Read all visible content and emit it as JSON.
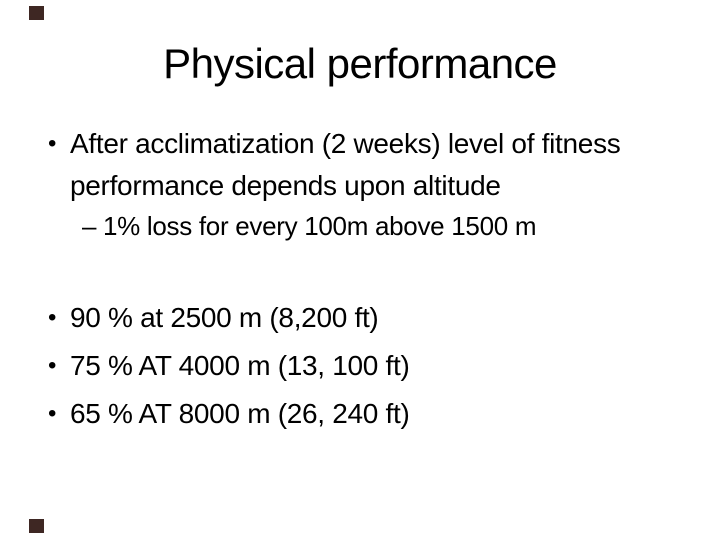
{
  "slide": {
    "title": "Physical performance",
    "bullets": [
      {
        "level": 1,
        "marker": "•",
        "text": "After acclimatization (2 weeks) level of fitness\nperformance depends upon altitude"
      },
      {
        "level": 2,
        "marker": "–",
        "text": "1% loss for every 100m above 1500 m"
      },
      {
        "level": 1,
        "marker": "•",
        "text": "90 % at 2500 m (8,200 ft)"
      },
      {
        "level": 1,
        "marker": "•",
        "text": "75 % AT 4000 m (13, 100 ft)"
      },
      {
        "level": 1,
        "marker": "•",
        "text": "65 % AT 8000 m (26, 240 ft)"
      }
    ],
    "colors": {
      "background": "#ffffff",
      "text": "#000000",
      "corner_marker": "#3e2723"
    }
  }
}
